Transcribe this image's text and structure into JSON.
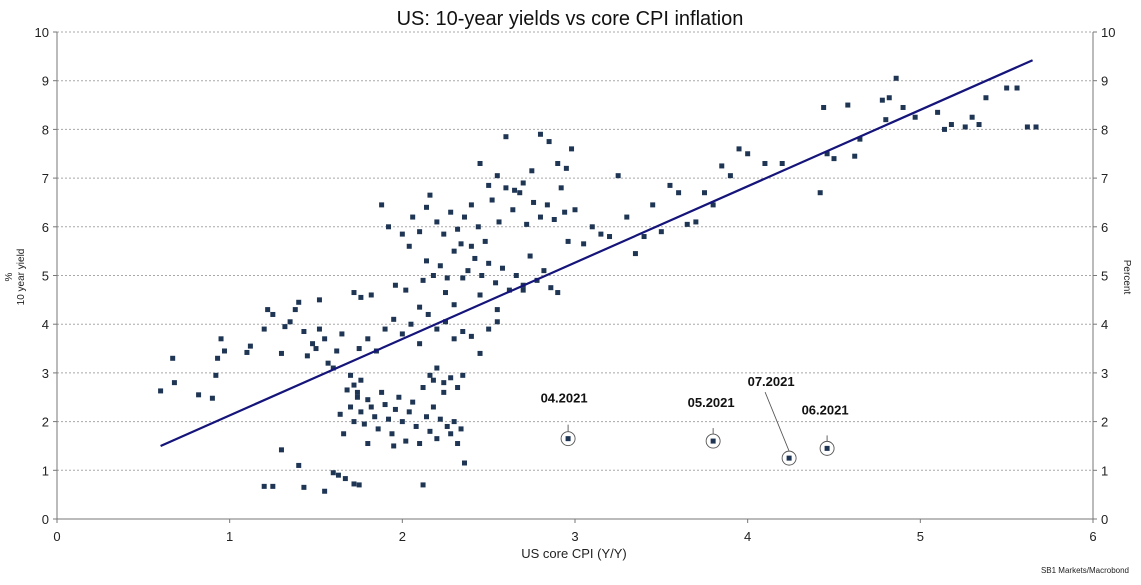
{
  "chart_data": {
    "type": "scatter",
    "title": "US: 10-year yields vs core CPI inflation",
    "xlabel": "US core CPI (Y/Y)",
    "ylabel_left_unit": "%",
    "ylabel_left": "10 year yield",
    "ylabel_right": "Percent",
    "source": "SB1 Markets/Macrobond",
    "xlim": [
      0,
      6
    ],
    "ylim": [
      0,
      10
    ],
    "x_ticks": [
      "0",
      "1",
      "2",
      "3",
      "4",
      "5",
      "6"
    ],
    "y_ticks": [
      "0",
      "1",
      "2",
      "3",
      "4",
      "5",
      "6",
      "7",
      "8",
      "9",
      "10"
    ],
    "grid": true,
    "marker_color": "#1f3554",
    "line_color": "#14147a",
    "trend_line": [
      [
        0.6,
        1.5
      ],
      [
        5.65,
        9.42
      ]
    ],
    "points": [
      [
        0.6,
        2.63
      ],
      [
        0.67,
        3.3
      ],
      [
        0.68,
        2.8
      ],
      [
        0.82,
        2.55
      ],
      [
        0.9,
        2.48
      ],
      [
        0.92,
        2.95
      ],
      [
        0.93,
        3.3
      ],
      [
        0.95,
        3.7
      ],
      [
        0.97,
        3.45
      ],
      [
        1.1,
        3.42
      ],
      [
        1.12,
        3.55
      ],
      [
        1.2,
        3.9
      ],
      [
        1.22,
        4.3
      ],
      [
        1.25,
        4.2
      ],
      [
        1.3,
        3.4
      ],
      [
        1.32,
        3.95
      ],
      [
        1.35,
        4.05
      ],
      [
        1.38,
        4.3
      ],
      [
        1.4,
        4.45
      ],
      [
        1.43,
        3.85
      ],
      [
        1.45,
        3.35
      ],
      [
        1.48,
        3.6
      ],
      [
        1.5,
        3.5
      ],
      [
        1.52,
        3.9
      ],
      [
        1.55,
        3.7
      ],
      [
        1.57,
        3.2
      ],
      [
        1.6,
        3.1
      ],
      [
        1.62,
        3.45
      ],
      [
        1.65,
        3.8
      ],
      [
        1.52,
        4.5
      ],
      [
        1.2,
        0.67
      ],
      [
        1.25,
        0.67
      ],
      [
        1.3,
        1.42
      ],
      [
        1.43,
        0.65
      ],
      [
        1.4,
        1.1
      ],
      [
        1.55,
        0.57
      ],
      [
        1.6,
        0.95
      ],
      [
        1.63,
        0.9
      ],
      [
        1.67,
        0.83
      ],
      [
        1.72,
        0.72
      ],
      [
        1.75,
        0.7
      ],
      [
        1.68,
        2.65
      ],
      [
        1.7,
        2.3
      ],
      [
        1.72,
        2.0
      ],
      [
        1.74,
        2.5
      ],
      [
        1.76,
        2.2
      ],
      [
        1.78,
        1.95
      ],
      [
        1.8,
        2.45
      ],
      [
        1.82,
        2.3
      ],
      [
        1.84,
        2.1
      ],
      [
        1.86,
        1.85
      ],
      [
        1.88,
        2.6
      ],
      [
        1.9,
        2.35
      ],
      [
        1.92,
        2.05
      ],
      [
        1.94,
        1.75
      ],
      [
        1.96,
        2.25
      ],
      [
        1.98,
        2.5
      ],
      [
        2.0,
        2.0
      ],
      [
        2.02,
        1.6
      ],
      [
        2.04,
        2.2
      ],
      [
        2.06,
        2.4
      ],
      [
        2.08,
        1.9
      ],
      [
        2.1,
        1.55
      ],
      [
        2.12,
        2.7
      ],
      [
        2.14,
        2.1
      ],
      [
        2.16,
        1.8
      ],
      [
        2.18,
        2.3
      ],
      [
        2.2,
        1.65
      ],
      [
        2.22,
        2.05
      ],
      [
        2.24,
        2.6
      ],
      [
        2.26,
        1.9
      ],
      [
        2.28,
        1.75
      ],
      [
        2.3,
        2.0
      ],
      [
        2.32,
        1.55
      ],
      [
        2.34,
        1.85
      ],
      [
        2.36,
        1.15
      ],
      [
        1.7,
        2.95
      ],
      [
        1.72,
        2.75
      ],
      [
        1.74,
        2.6
      ],
      [
        1.76,
        2.85
      ],
      [
        1.66,
        1.75
      ],
      [
        1.64,
        2.15
      ],
      [
        1.8,
        1.55
      ],
      [
        1.95,
        1.5
      ],
      [
        2.16,
        2.95
      ],
      [
        2.18,
        2.85
      ],
      [
        2.2,
        3.1
      ],
      [
        2.24,
        2.8
      ],
      [
        2.28,
        2.9
      ],
      [
        2.32,
        2.7
      ],
      [
        2.35,
        2.95
      ],
      [
        2.12,
        0.7
      ],
      [
        1.75,
        3.5
      ],
      [
        1.8,
        3.7
      ],
      [
        1.85,
        3.45
      ],
      [
        1.9,
        3.9
      ],
      [
        1.95,
        4.1
      ],
      [
        2.0,
        3.8
      ],
      [
        2.05,
        4.0
      ],
      [
        2.1,
        3.6
      ],
      [
        2.15,
        4.2
      ],
      [
        2.2,
        3.9
      ],
      [
        2.25,
        4.05
      ],
      [
        2.3,
        3.7
      ],
      [
        2.35,
        3.85
      ],
      [
        2.4,
        3.75
      ],
      [
        2.45,
        3.4
      ],
      [
        2.5,
        3.9
      ],
      [
        2.55,
        4.05
      ],
      [
        1.72,
        4.65
      ],
      [
        1.76,
        4.55
      ],
      [
        1.82,
        4.6
      ],
      [
        1.96,
        4.8
      ],
      [
        2.02,
        4.7
      ],
      [
        2.1,
        4.35
      ],
      [
        2.12,
        4.9
      ],
      [
        2.14,
        5.3
      ],
      [
        2.18,
        5.0
      ],
      [
        2.22,
        5.2
      ],
      [
        2.26,
        4.95
      ],
      [
        2.3,
        5.5
      ],
      [
        2.34,
        5.65
      ],
      [
        2.38,
        5.1
      ],
      [
        2.42,
        5.35
      ],
      [
        2.46,
        5.0
      ],
      [
        2.5,
        5.25
      ],
      [
        2.54,
        4.85
      ],
      [
        2.58,
        5.15
      ],
      [
        2.62,
        4.7
      ],
      [
        2.66,
        5.0
      ],
      [
        2.7,
        4.8
      ],
      [
        2.74,
        5.4
      ],
      [
        2.78,
        4.9
      ],
      [
        2.82,
        5.1
      ],
      [
        2.86,
        4.75
      ],
      [
        1.88,
        6.45
      ],
      [
        1.92,
        6.0
      ],
      [
        2.0,
        5.85
      ],
      [
        2.04,
        5.6
      ],
      [
        2.06,
        6.2
      ],
      [
        2.1,
        5.9
      ],
      [
        2.14,
        6.4
      ],
      [
        2.16,
        6.65
      ],
      [
        2.2,
        6.1
      ],
      [
        2.24,
        5.85
      ],
      [
        2.28,
        6.3
      ],
      [
        2.32,
        5.95
      ],
      [
        2.36,
        6.2
      ],
      [
        2.4,
        6.45
      ],
      [
        2.44,
        6.0
      ],
      [
        2.48,
        5.7
      ],
      [
        2.52,
        6.55
      ],
      [
        2.56,
        6.1
      ],
      [
        2.6,
        6.8
      ],
      [
        2.64,
        6.35
      ],
      [
        2.68,
        6.7
      ],
      [
        2.72,
        6.05
      ],
      [
        2.76,
        6.5
      ],
      [
        2.8,
        6.2
      ],
      [
        2.84,
        6.45
      ],
      [
        2.88,
        6.15
      ],
      [
        2.45,
        7.3
      ],
      [
        2.5,
        6.85
      ],
      [
        2.55,
        7.05
      ],
      [
        2.6,
        7.85
      ],
      [
        2.65,
        6.75
      ],
      [
        2.7,
        6.9
      ],
      [
        2.75,
        7.15
      ],
      [
        2.8,
        7.9
      ],
      [
        2.85,
        7.75
      ],
      [
        2.9,
        7.3
      ],
      [
        2.92,
        6.8
      ],
      [
        2.95,
        7.2
      ],
      [
        2.98,
        7.6
      ],
      [
        2.94,
        6.3
      ],
      [
        2.96,
        5.7
      ],
      [
        3.0,
        6.35
      ],
      [
        3.05,
        5.65
      ],
      [
        3.1,
        6.0
      ],
      [
        3.15,
        5.85
      ],
      [
        3.2,
        5.8
      ],
      [
        3.25,
        7.05
      ],
      [
        3.3,
        6.2
      ],
      [
        3.35,
        5.45
      ],
      [
        3.4,
        5.8
      ],
      [
        3.45,
        6.45
      ],
      [
        3.5,
        5.9
      ],
      [
        3.55,
        6.85
      ],
      [
        3.6,
        6.7
      ],
      [
        3.65,
        6.05
      ],
      [
        3.7,
        6.1
      ],
      [
        3.75,
        6.7
      ],
      [
        3.8,
        6.45
      ],
      [
        3.85,
        7.25
      ],
      [
        3.9,
        7.05
      ],
      [
        3.95,
        7.6
      ],
      [
        4.0,
        7.5
      ],
      [
        4.1,
        7.3
      ],
      [
        4.2,
        7.3
      ],
      [
        4.42,
        6.7
      ],
      [
        4.44,
        8.45
      ],
      [
        4.46,
        7.5
      ],
      [
        4.5,
        7.4
      ],
      [
        4.58,
        8.5
      ],
      [
        4.62,
        7.45
      ],
      [
        4.65,
        7.8
      ],
      [
        4.78,
        8.6
      ],
      [
        4.8,
        8.2
      ],
      [
        4.82,
        8.65
      ],
      [
        4.86,
        9.05
      ],
      [
        4.9,
        8.45
      ],
      [
        4.97,
        8.25
      ],
      [
        5.1,
        8.35
      ],
      [
        5.14,
        8.0
      ],
      [
        5.18,
        8.1
      ],
      [
        5.26,
        8.05
      ],
      [
        5.3,
        8.25
      ],
      [
        5.34,
        8.1
      ],
      [
        5.38,
        8.65
      ],
      [
        5.5,
        8.85
      ],
      [
        5.56,
        8.85
      ],
      [
        5.62,
        8.05
      ],
      [
        5.67,
        8.05
      ],
      [
        2.35,
        4.95
      ],
      [
        2.4,
        5.6
      ],
      [
        2.45,
        4.6
      ],
      [
        2.55,
        4.3
      ],
      [
        2.7,
        4.7
      ],
      [
        2.9,
        4.65
      ],
      [
        2.3,
        4.4
      ],
      [
        2.25,
        4.65
      ]
    ],
    "highlighted_points": [
      {
        "label": "04.2021",
        "x": 2.96,
        "y": 1.65
      },
      {
        "label": "05.2021",
        "x": 3.8,
        "y": 1.6
      },
      {
        "label": "07.2021",
        "x": 4.24,
        "y": 1.25
      },
      {
        "label": "06.2021",
        "x": 4.46,
        "y": 1.45
      }
    ]
  }
}
